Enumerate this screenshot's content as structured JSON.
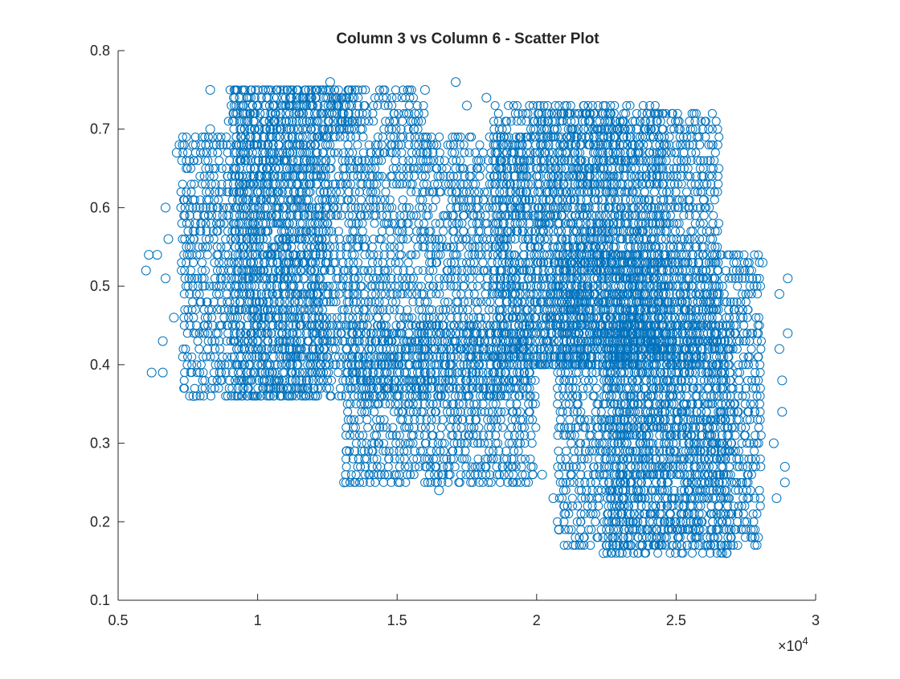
{
  "chart_data": {
    "type": "scatter",
    "title": "Column 3 vs Column 6 - Scatter Plot",
    "xlabel": "",
    "ylabel": "",
    "xlim": [
      5000,
      30000
    ],
    "ylim": [
      0.1,
      0.8
    ],
    "x_ticks": [
      5000,
      10000,
      15000,
      20000,
      25000,
      30000
    ],
    "x_tick_labels": [
      "0.5",
      "1",
      "1.5",
      "2",
      "2.5",
      "3"
    ],
    "x_exponent_label": "×10",
    "x_exponent_power": "4",
    "y_ticks": [
      0.1,
      0.2,
      0.3,
      0.4,
      0.5,
      0.6,
      0.7,
      0.8
    ],
    "y_tick_labels": [
      "0.1",
      "0.2",
      "0.3",
      "0.4",
      "0.5",
      "0.6",
      "0.7",
      "0.8"
    ],
    "grid": false,
    "box": false,
    "marker": "open-circle",
    "color": "#0072BD",
    "dense_regions": [
      {
        "x": [
          7300,
          12500
        ],
        "y": [
          0.36,
          0.69
        ]
      },
      {
        "x": [
          9200,
          16000
        ],
        "y": [
          0.36,
          0.75
        ]
      },
      {
        "x": [
          9000,
          13500
        ],
        "y": [
          0.7,
          0.75
        ]
      },
      {
        "x": [
          16000,
          19800
        ],
        "y": [
          0.36,
          0.69
        ]
      },
      {
        "x": [
          13200,
          20000
        ],
        "y": [
          0.25,
          0.45
        ]
      },
      {
        "x": [
          18500,
          24500
        ],
        "y": [
          0.4,
          0.73
        ]
      },
      {
        "x": [
          20000,
          26500
        ],
        "y": [
          0.4,
          0.72
        ]
      },
      {
        "x": [
          20800,
          28000
        ],
        "y": [
          0.17,
          0.54
        ]
      },
      {
        "x": [
          22500,
          27000
        ],
        "y": [
          0.16,
          0.45
        ]
      }
    ],
    "series": [
      {
        "x": [
          6000,
          6100,
          6200,
          6600,
          6700,
          8300,
          12600,
          17100,
          17500,
          16000,
          18200,
          15600,
          25700,
          26000,
          26100,
          29000,
          29000,
          28700,
          28800,
          28900,
          28800,
          28900,
          28600,
          28500,
          28700,
          16500,
          20200,
          20800,
          21000,
          13100,
          13200,
          20600,
          22400,
          26800,
          24000,
          23300,
          7700,
          8300,
          6400,
          6600,
          7100,
          7200,
          7000,
          6800,
          6700,
          28100
        ],
        "y": [
          0.52,
          0.54,
          0.39,
          0.39,
          0.6,
          0.75,
          0.76,
          0.76,
          0.73,
          0.75,
          0.74,
          0.7,
          0.7,
          0.61,
          0.57,
          0.51,
          0.44,
          0.49,
          0.38,
          0.27,
          0.34,
          0.25,
          0.23,
          0.3,
          0.42,
          0.24,
          0.26,
          0.19,
          0.21,
          0.25,
          0.29,
          0.23,
          0.16,
          0.16,
          0.17,
          0.17,
          0.36,
          0.7,
          0.54,
          0.43,
          0.67,
          0.68,
          0.46,
          0.56,
          0.51,
          0.53
        ]
      }
    ]
  }
}
